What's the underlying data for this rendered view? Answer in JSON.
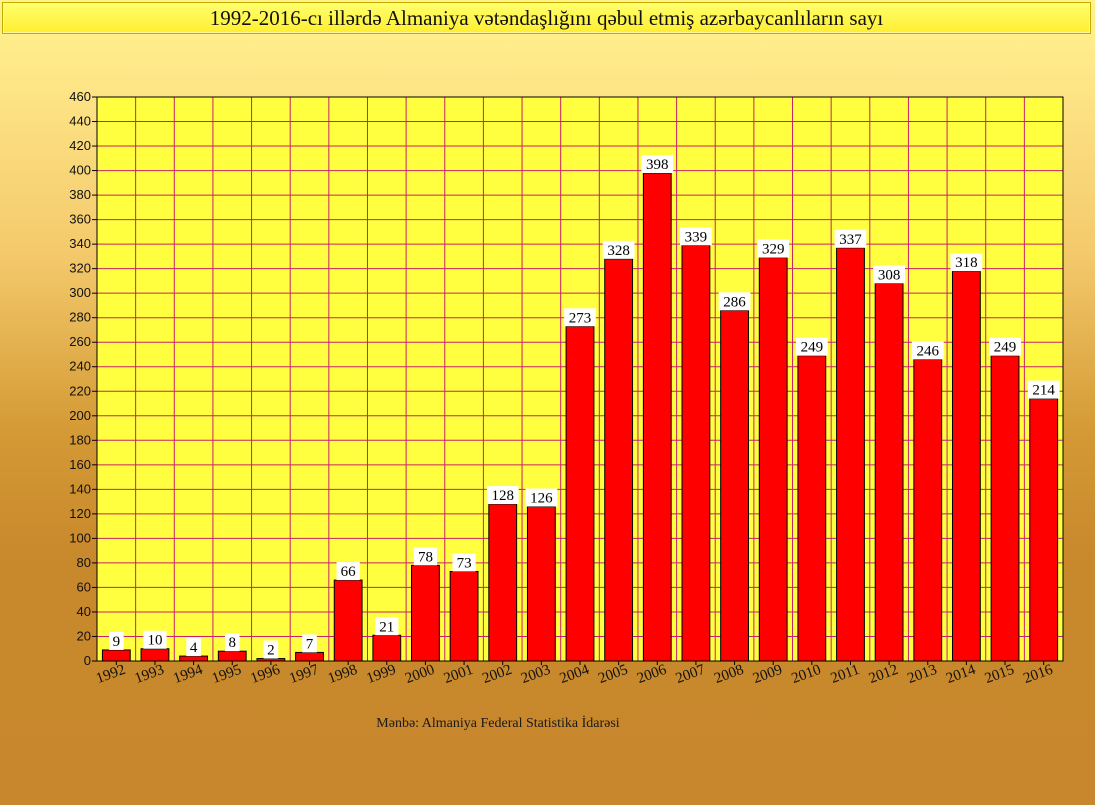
{
  "title": "1992-2016-cı illərdə Almaniya vətəndaşlığını qəbul etmiş azərbaycanlıların sayı",
  "source": "Mənbə: Almaniya Federal Statistika İdarəsi",
  "colors": {
    "bar": "#ff0000",
    "grid": "#c8206a",
    "plot_bg_top": "#ffff40",
    "plot_bg_bottom": "#ffff40"
  },
  "chart_data": {
    "type": "bar",
    "title": "1992-2016-cı illərdə Almaniya vətəndaşlığını qəbul etmiş azərbaycanlıların sayı",
    "xlabel": "",
    "ylabel": "",
    "ylim": [
      0,
      460
    ],
    "y_ticks": [
      0,
      20,
      40,
      60,
      80,
      100,
      120,
      140,
      160,
      180,
      200,
      220,
      240,
      260,
      280,
      300,
      320,
      340,
      360,
      380,
      400,
      420,
      440,
      460
    ],
    "grid": true,
    "categories": [
      "1992",
      "1993",
      "1994",
      "1995",
      "1996",
      "1997",
      "1998",
      "1999",
      "2000",
      "2001",
      "2002",
      "2003",
      "2004",
      "2005",
      "2006",
      "2007",
      "2008",
      "2009",
      "2010",
      "2011",
      "2012",
      "2013",
      "2014",
      "2015",
      "2016"
    ],
    "values": [
      9,
      10,
      4,
      8,
      2,
      7,
      66,
      21,
      78,
      73,
      128,
      126,
      273,
      328,
      398,
      339,
      286,
      329,
      249,
      337,
      308,
      246,
      318,
      249,
      214
    ]
  }
}
